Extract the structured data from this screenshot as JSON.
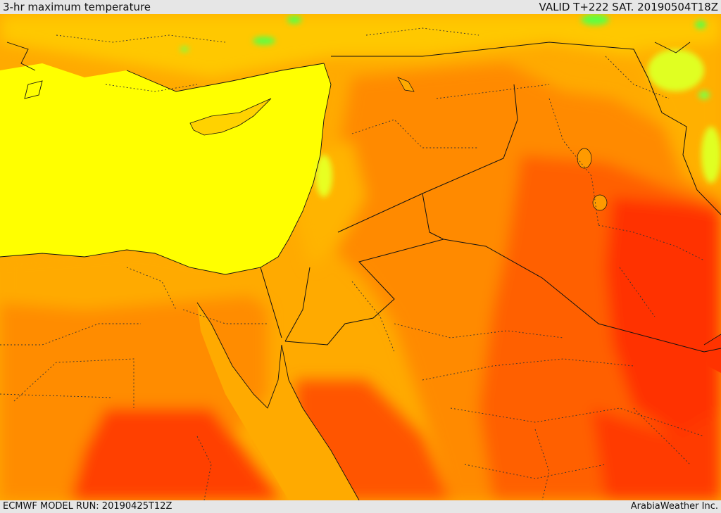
{
  "header": {
    "title": "3-hr maximum temperature",
    "valid": "VALID T+222 SAT. 20190504T18Z"
  },
  "footer": {
    "model_run": "ECMWF MODEL RUN: 20190425T12Z",
    "credit": "ArabiaWeather Inc."
  },
  "colors": {
    "sea_yellow": "#ffff00",
    "warm_orange": "#ffaa00",
    "hot_orange": "#ff8000",
    "very_hot": "#ff5a00",
    "extreme": "#ff2e00",
    "cool_green": "#80ff40",
    "lime": "#d8ff20",
    "border": "#111111"
  }
}
